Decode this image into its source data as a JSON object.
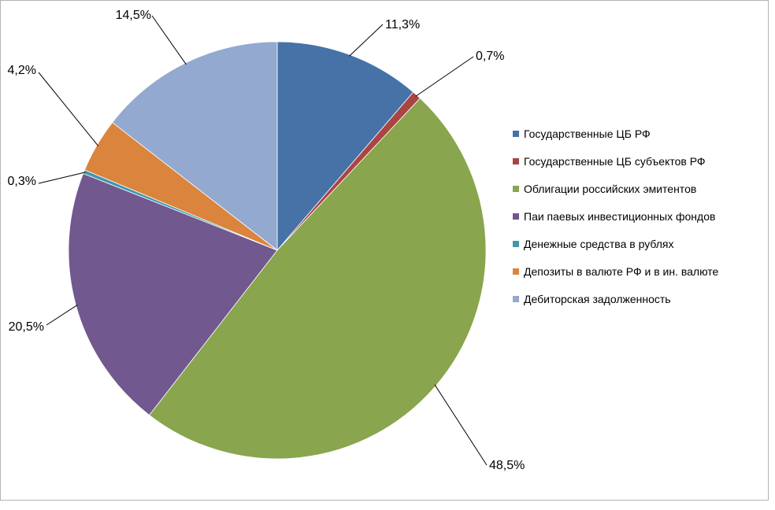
{
  "chart_data": {
    "type": "pie",
    "title": "",
    "start_angle_deg": 0,
    "direction": "clockwise",
    "legend_position": "right",
    "categories": [
      "Государственные ЦБ РФ",
      "Государственные ЦБ субъектов РФ",
      "Облигации российских эмитентов",
      "Паи паевых инвестиционных фондов",
      "Денежные средства в рублях",
      "Депозиты в валюте РФ и в ин. валюте",
      "Дебиторская задолженность"
    ],
    "values": [
      11.3,
      0.7,
      48.5,
      20.5,
      0.3,
      4.2,
      14.5
    ],
    "data_labels": [
      "11,3%",
      "0,7%",
      "48,5%",
      "20,5%",
      "0,3%",
      "4,2%",
      "14,5%"
    ],
    "colors": [
      "#4672A8",
      "#A94543",
      "#89A54E",
      "#71588F",
      "#4198AF",
      "#DB843D",
      "#93A9CF"
    ]
  }
}
